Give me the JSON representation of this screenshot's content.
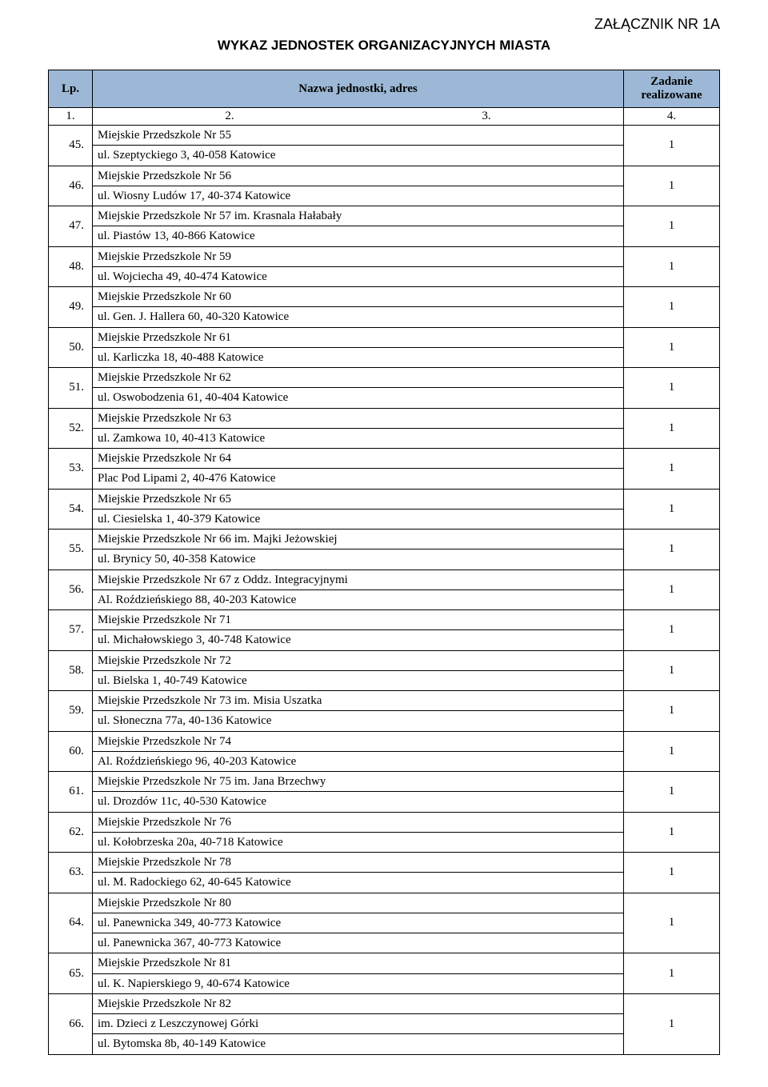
{
  "attachment_label": "ZAŁĄCZNIK NR 1A",
  "title": "WYKAZ JEDNOSTEK ORGANIZACYJNYCH MIASTA",
  "header": {
    "col_lp": "Lp.",
    "col_name": "Nazwa jednostki, adres",
    "col_zadanie": "Zadanie realizowane"
  },
  "subheader": {
    "c1": "1.",
    "c2": "2.",
    "c3": "3.",
    "c4": "4."
  },
  "style": {
    "header_bg": "#9cb8d6",
    "border_color": "#000000",
    "font_family": "Times New Roman",
    "title_font_family": "Arial",
    "font_size": 15,
    "title_font_size": 17,
    "attachment_font_size": 18,
    "page_bg": "#ffffff"
  },
  "rows": [
    {
      "lp": "45.",
      "lines": [
        "Miejskie Przedszkole Nr 55",
        "ul. Szeptyckiego 3, 40-058 Katowice"
      ],
      "zadanie": "1"
    },
    {
      "lp": "46.",
      "lines": [
        "Miejskie Przedszkole Nr 56",
        "ul. Wiosny Ludów 17, 40-374 Katowice"
      ],
      "zadanie": "1"
    },
    {
      "lp": "47.",
      "lines": [
        "Miejskie Przedszkole Nr 57 im. Krasnala Hałabały",
        "ul. Piastów 13, 40-866 Katowice"
      ],
      "zadanie": "1"
    },
    {
      "lp": "48.",
      "lines": [
        "Miejskie Przedszkole Nr 59",
        "ul. Wojciecha 49, 40-474 Katowice"
      ],
      "zadanie": "1"
    },
    {
      "lp": "49.",
      "lines": [
        "Miejskie Przedszkole Nr 60",
        "ul. Gen. J. Hallera 60, 40-320 Katowice"
      ],
      "zadanie": "1"
    },
    {
      "lp": "50.",
      "lines": [
        "Miejskie Przedszkole Nr 61",
        "ul. Karliczka 18, 40-488 Katowice"
      ],
      "zadanie": "1"
    },
    {
      "lp": "51.",
      "lines": [
        "Miejskie Przedszkole Nr 62",
        "ul. Oswobodzenia 61, 40-404 Katowice"
      ],
      "zadanie": "1"
    },
    {
      "lp": "52.",
      "lines": [
        "Miejskie Przedszkole Nr 63",
        "ul. Zamkowa 10, 40-413 Katowice"
      ],
      "zadanie": "1"
    },
    {
      "lp": "53.",
      "lines": [
        "Miejskie Przedszkole Nr 64",
        "Plac Pod Lipami 2, 40-476 Katowice"
      ],
      "zadanie": "1"
    },
    {
      "lp": "54.",
      "lines": [
        "Miejskie Przedszkole Nr 65",
        "ul. Ciesielska 1, 40-379 Katowice"
      ],
      "zadanie": "1"
    },
    {
      "lp": "55.",
      "lines": [
        "Miejskie Przedszkole Nr 66 im. Majki Jeżowskiej",
        "ul. Brynicy 50, 40-358 Katowice"
      ],
      "zadanie": "1"
    },
    {
      "lp": "56.",
      "lines": [
        "Miejskie Przedszkole Nr 67 z Oddz. Integracyjnymi",
        "Al. Roździeńskiego 88, 40-203 Katowice"
      ],
      "zadanie": "1"
    },
    {
      "lp": "57.",
      "lines": [
        "Miejskie Przedszkole Nr 71",
        "ul. Michałowskiego 3, 40-748 Katowice"
      ],
      "zadanie": "1"
    },
    {
      "lp": "58.",
      "lines": [
        "Miejskie Przedszkole Nr 72",
        "ul. Bielska 1, 40-749 Katowice"
      ],
      "zadanie": "1"
    },
    {
      "lp": "59.",
      "lines": [
        "Miejskie Przedszkole Nr 73 im. Misia Uszatka",
        "ul. Słoneczna 77a, 40-136 Katowice"
      ],
      "zadanie": "1"
    },
    {
      "lp": "60.",
      "lines": [
        "Miejskie Przedszkole Nr 74",
        "Al. Roździeńskiego 96, 40-203 Katowice"
      ],
      "zadanie": "1"
    },
    {
      "lp": "61.",
      "lines": [
        "Miejskie Przedszkole Nr 75 im. Jana Brzechwy",
        "ul. Drozdów 11c, 40-530 Katowice"
      ],
      "zadanie": "1"
    },
    {
      "lp": "62.",
      "lines": [
        "Miejskie Przedszkole Nr 76",
        "ul. Kołobrzeska 20a, 40-718 Katowice"
      ],
      "zadanie": "1"
    },
    {
      "lp": "63.",
      "lines": [
        "Miejskie Przedszkole Nr 78",
        "ul. M. Radockiego 62, 40-645 Katowice"
      ],
      "zadanie": "1"
    },
    {
      "lp": "64.",
      "lines": [
        "Miejskie Przedszkole Nr 80",
        "ul. Panewnicka 349, 40-773 Katowice",
        "ul. Panewnicka 367, 40-773 Katowice"
      ],
      "zadanie": "1"
    },
    {
      "lp": "65.",
      "lines": [
        "Miejskie Przedszkole Nr 81",
        "ul. K. Napierskiego 9, 40-674 Katowice"
      ],
      "zadanie": "1"
    },
    {
      "lp": "66.",
      "lines": [
        "Miejskie Przedszkole Nr 82",
        "im. Dzieci z Leszczynowej Górki",
        "ul. Bytomska 8b, 40-149 Katowice"
      ],
      "zadanie": "1"
    }
  ]
}
